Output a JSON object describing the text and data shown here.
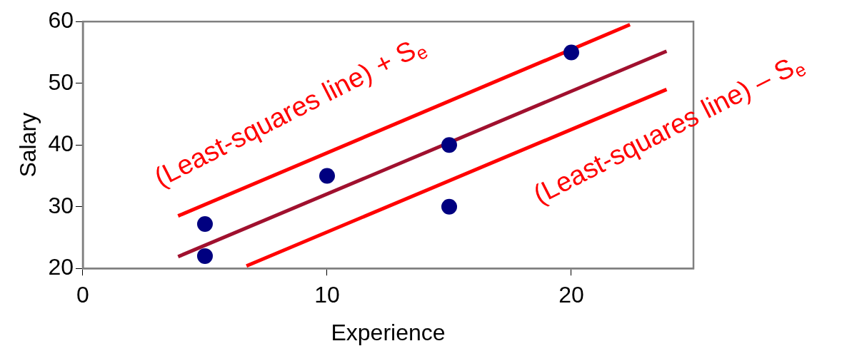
{
  "chart_data": {
    "type": "scatter",
    "xlabel": "Experience",
    "ylabel": "Salary",
    "xlim": [
      0,
      25
    ],
    "xticks": [
      0,
      10,
      20
    ],
    "ylim": [
      20,
      60
    ],
    "yticks": [
      20,
      30,
      40,
      50,
      60
    ],
    "grid": false,
    "legend": false,
    "series": [
      {
        "type": "scatter",
        "color": "#000080",
        "marker": "circle",
        "x": [
          5,
          5,
          10,
          15,
          15,
          20
        ],
        "values": [
          27.2,
          22,
          35,
          40,
          30,
          55
        ]
      },
      {
        "type": "line",
        "color": "#a0102e",
        "marker": "none",
        "x": [
          3.9,
          23.9
        ],
        "values": [
          21.9,
          55.2
        ]
      },
      {
        "type": "line",
        "color": "#ff0000",
        "marker": "none",
        "x": [
          3.9,
          22.4
        ],
        "values": [
          28.5,
          59.5
        ]
      },
      {
        "type": "line",
        "color": "#ff0000",
        "marker": "none",
        "x": [
          6.7,
          23.9
        ],
        "values": [
          20.4,
          49
        ]
      }
    ],
    "annotations": [
      "(Least-squares line) + S$_{e}$",
      "(Least-squares line) – S$_{e}$"
    ]
  }
}
